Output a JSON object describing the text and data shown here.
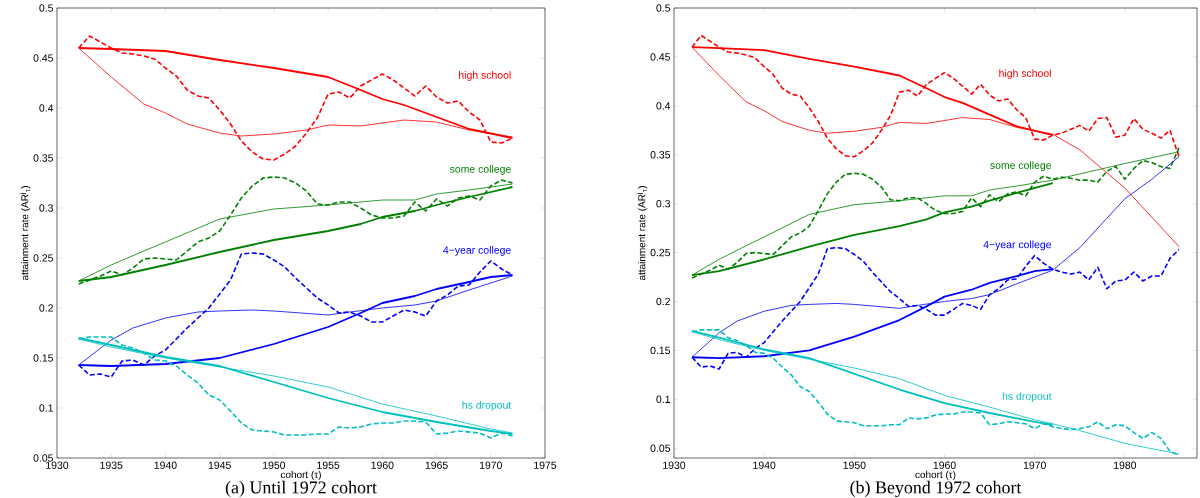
{
  "chart_data": [
    {
      "type": "line",
      "title": "(a) Until 1972 cohort",
      "xlabel": "cohort (τ)",
      "ylabel": "attainment rate (AR$^{j}$$_{τ}$)",
      "xlim": [
        1930,
        1975
      ],
      "xticks": [
        1930,
        1935,
        1940,
        1945,
        1950,
        1955,
        1960,
        1965,
        1970,
        1975
      ],
      "ylim": [
        0.05,
        0.5
      ],
      "yticks": [
        0.05,
        0.1,
        0.15,
        0.2,
        0.25,
        0.3,
        0.35,
        0.4,
        0.45,
        0.5
      ],
      "grid": false,
      "marker": "none",
      "series": [
        {
          "name": "high school",
          "color": "#ff0000",
          "line_style": "solid",
          "x": [
            1932,
            1935,
            1940,
            1945,
            1950,
            1955,
            1958,
            1960,
            1962,
            1965,
            1968,
            1972
          ],
          "values": [
            0.46,
            0.459,
            0.457,
            0.448,
            0.44,
            0.431,
            0.418,
            0.409,
            0.403,
            0.391,
            0.379,
            0.37
          ]
        },
        {
          "color": "#ff0000",
          "line_style": "solid",
          "x": [
            1932,
            1935,
            1938,
            1940,
            1942,
            1945,
            1947,
            1950,
            1953,
            1955,
            1958,
            1962,
            1965,
            1968,
            1972
          ],
          "values": [
            0.46,
            0.431,
            0.404,
            0.395,
            0.384,
            0.375,
            0.372,
            0.374,
            0.378,
            0.383,
            0.382,
            0.388,
            0.386,
            0.378,
            0.371
          ]
        },
        {
          "color": "#ff0000",
          "line_style": "dashed",
          "x": [
            1932,
            1933,
            1934,
            1935,
            1936,
            1937,
            1938,
            1939,
            1940,
            1941,
            1942,
            1943,
            1944,
            1945,
            1946,
            1947,
            1948,
            1949,
            1950,
            1951,
            1952,
            1953,
            1954,
            1955,
            1956,
            1957,
            1958,
            1959,
            1960,
            1961,
            1962,
            1963,
            1964,
            1965,
            1966,
            1967,
            1968,
            1969,
            1970,
            1971,
            1972
          ],
          "values": [
            0.46,
            0.472,
            0.466,
            0.46,
            0.455,
            0.454,
            0.452,
            0.449,
            0.44,
            0.432,
            0.418,
            0.412,
            0.41,
            0.398,
            0.384,
            0.367,
            0.356,
            0.349,
            0.348,
            0.354,
            0.362,
            0.375,
            0.39,
            0.414,
            0.416,
            0.41,
            0.422,
            0.428,
            0.434,
            0.428,
            0.42,
            0.412,
            0.422,
            0.411,
            0.405,
            0.407,
            0.396,
            0.388,
            0.366,
            0.365,
            0.37
          ]
        },
        {
          "name": "some college",
          "color": "#008000",
          "line_style": "solid",
          "x": [
            1932,
            1935,
            1940,
            1945,
            1950,
            1955,
            1958,
            1960,
            1963,
            1965,
            1968,
            1972
          ],
          "values": [
            0.227,
            0.231,
            0.243,
            0.256,
            0.268,
            0.277,
            0.284,
            0.291,
            0.297,
            0.303,
            0.311,
            0.321
          ]
        },
        {
          "color": "#008000",
          "line_style": "solid",
          "x": [
            1932,
            1935,
            1938,
            1940,
            1945,
            1950,
            1955,
            1960,
            1963,
            1965,
            1968,
            1972
          ],
          "values": [
            0.227,
            0.243,
            0.257,
            0.266,
            0.289,
            0.299,
            0.303,
            0.308,
            0.308,
            0.314,
            0.318,
            0.324
          ]
        },
        {
          "color": "#008000",
          "line_style": "dashed",
          "x": [
            1932,
            1933,
            1934,
            1935,
            1936,
            1937,
            1938,
            1939,
            1940,
            1941,
            1942,
            1943,
            1944,
            1945,
            1946,
            1947,
            1948,
            1949,
            1950,
            1951,
            1952,
            1953,
            1954,
            1955,
            1956,
            1957,
            1958,
            1959,
            1960,
            1961,
            1962,
            1963,
            1964,
            1965,
            1966,
            1967,
            1968,
            1969,
            1970,
            1971,
            1972
          ],
          "values": [
            0.224,
            0.228,
            0.232,
            0.237,
            0.233,
            0.24,
            0.249,
            0.25,
            0.249,
            0.248,
            0.257,
            0.266,
            0.27,
            0.277,
            0.293,
            0.31,
            0.322,
            0.33,
            0.331,
            0.33,
            0.325,
            0.317,
            0.304,
            0.303,
            0.306,
            0.306,
            0.3,
            0.293,
            0.29,
            0.29,
            0.292,
            0.306,
            0.297,
            0.309,
            0.302,
            0.31,
            0.312,
            0.308,
            0.322,
            0.328,
            0.325
          ]
        },
        {
          "name": "4−year college",
          "color": "#0000ff",
          "line_style": "solid",
          "x": [
            1932,
            1935,
            1940,
            1945,
            1950,
            1955,
            1958,
            1960,
            1963,
            1965,
            1968,
            1970,
            1972
          ],
          "values": [
            0.143,
            0.142,
            0.144,
            0.15,
            0.164,
            0.181,
            0.195,
            0.205,
            0.212,
            0.219,
            0.226,
            0.231,
            0.233
          ]
        },
        {
          "color": "#0000ff",
          "line_style": "solid",
          "x": [
            1932,
            1935,
            1937,
            1940,
            1943,
            1945,
            1948,
            1950,
            1955,
            1957,
            1960,
            1963,
            1965,
            1968,
            1972
          ],
          "values": [
            0.143,
            0.168,
            0.18,
            0.19,
            0.196,
            0.197,
            0.198,
            0.197,
            0.193,
            0.196,
            0.2,
            0.203,
            0.207,
            0.218,
            0.232
          ]
        },
        {
          "color": "#0000ff",
          "line_style": "dashed",
          "x": [
            1932,
            1933,
            1934,
            1935,
            1936,
            1937,
            1938,
            1939,
            1940,
            1941,
            1942,
            1943,
            1944,
            1945,
            1946,
            1947,
            1948,
            1949,
            1950,
            1951,
            1952,
            1953,
            1954,
            1955,
            1956,
            1957,
            1958,
            1959,
            1960,
            1961,
            1962,
            1963,
            1964,
            1965,
            1966,
            1967,
            1968,
            1969,
            1970,
            1971,
            1972
          ],
          "values": [
            0.143,
            0.133,
            0.134,
            0.131,
            0.147,
            0.148,
            0.143,
            0.152,
            0.158,
            0.169,
            0.18,
            0.19,
            0.2,
            0.214,
            0.228,
            0.254,
            0.255,
            0.254,
            0.248,
            0.241,
            0.23,
            0.22,
            0.21,
            0.203,
            0.195,
            0.196,
            0.192,
            0.186,
            0.186,
            0.192,
            0.198,
            0.196,
            0.192,
            0.207,
            0.213,
            0.222,
            0.223,
            0.236,
            0.247,
            0.239,
            0.233
          ]
        },
        {
          "name": "hs dropout",
          "color": "#00bfbf",
          "line_style": "solid",
          "x": [
            1932,
            1935,
            1940,
            1945,
            1950,
            1955,
            1960,
            1965,
            1970,
            1972
          ],
          "values": [
            0.17,
            0.163,
            0.151,
            0.142,
            0.126,
            0.11,
            0.096,
            0.086,
            0.077,
            0.074
          ]
        },
        {
          "color": "#00bfbf",
          "line_style": "solid",
          "x": [
            1932,
            1935,
            1940,
            1945,
            1950,
            1955,
            1960,
            1965,
            1970,
            1972
          ],
          "values": [
            0.169,
            0.161,
            0.15,
            0.141,
            0.132,
            0.121,
            0.104,
            0.092,
            0.079,
            0.075
          ]
        },
        {
          "color": "#00bfbf",
          "line_style": "dashed",
          "x": [
            1932,
            1933,
            1934,
            1935,
            1936,
            1937,
            1938,
            1939,
            1940,
            1941,
            1942,
            1943,
            1944,
            1945,
            1946,
            1947,
            1948,
            1949,
            1950,
            1951,
            1952,
            1953,
            1954,
            1955,
            1956,
            1957,
            1958,
            1959,
            1960,
            1961,
            1962,
            1963,
            1964,
            1965,
            1966,
            1967,
            1968,
            1969,
            1970,
            1971,
            1972
          ],
          "values": [
            0.169,
            0.171,
            0.171,
            0.171,
            0.163,
            0.16,
            0.155,
            0.148,
            0.147,
            0.142,
            0.133,
            0.125,
            0.113,
            0.108,
            0.097,
            0.085,
            0.078,
            0.077,
            0.076,
            0.073,
            0.073,
            0.073,
            0.074,
            0.074,
            0.081,
            0.08,
            0.081,
            0.084,
            0.085,
            0.085,
            0.087,
            0.087,
            0.086,
            0.074,
            0.075,
            0.077,
            0.076,
            0.075,
            0.07,
            0.075,
            0.072
          ]
        }
      ]
    },
    {
      "type": "line",
      "title": "(b) Beyond 1972 cohort",
      "xlabel": "cohort (τ)",
      "ylabel": "attainment rate (AR$^{j}$$_{τ}$)",
      "xlim": [
        1930,
        1988
      ],
      "xticks": [
        1930,
        1940,
        1950,
        1960,
        1970,
        1980
      ],
      "ylim": [
        0.04,
        0.5
      ],
      "yticks": [
        0.05,
        0.1,
        0.15,
        0.2,
        0.25,
        0.3,
        0.35,
        0.4,
        0.45,
        0.5
      ],
      "grid": false,
      "marker": "none",
      "series": [
        {
          "name": "high school",
          "color": "#ff0000",
          "line_style": "solid",
          "x": [
            1932,
            1935,
            1940,
            1945,
            1950,
            1955,
            1958,
            1960,
            1962,
            1965,
            1968,
            1972
          ],
          "values": [
            0.46,
            0.459,
            0.457,
            0.448,
            0.44,
            0.431,
            0.418,
            0.409,
            0.403,
            0.391,
            0.379,
            0.37
          ]
        },
        {
          "color": "#ff0000",
          "line_style": "solid",
          "x": [
            1932,
            1935,
            1938,
            1940,
            1942,
            1945,
            1947,
            1950,
            1953,
            1955,
            1958,
            1962,
            1965,
            1968,
            1972,
            1975,
            1980,
            1986
          ],
          "values": [
            0.46,
            0.431,
            0.404,
            0.395,
            0.384,
            0.375,
            0.372,
            0.374,
            0.378,
            0.383,
            0.382,
            0.388,
            0.386,
            0.378,
            0.371,
            0.355,
            0.316,
            0.256
          ]
        },
        {
          "color": "#ff0000",
          "line_style": "dashed",
          "x": [
            1932,
            1933,
            1934,
            1935,
            1936,
            1937,
            1938,
            1939,
            1940,
            1941,
            1942,
            1943,
            1944,
            1945,
            1946,
            1947,
            1948,
            1949,
            1950,
            1951,
            1952,
            1953,
            1954,
            1955,
            1956,
            1957,
            1958,
            1959,
            1960,
            1961,
            1962,
            1963,
            1964,
            1965,
            1966,
            1967,
            1968,
            1969,
            1970,
            1971,
            1972,
            1973,
            1974,
            1975,
            1976,
            1977,
            1978,
            1979,
            1980,
            1981,
            1982,
            1983,
            1984,
            1985,
            1986
          ],
          "values": [
            0.46,
            0.472,
            0.466,
            0.46,
            0.455,
            0.454,
            0.452,
            0.449,
            0.44,
            0.432,
            0.418,
            0.412,
            0.41,
            0.398,
            0.384,
            0.367,
            0.356,
            0.349,
            0.348,
            0.354,
            0.362,
            0.375,
            0.39,
            0.414,
            0.416,
            0.41,
            0.422,
            0.428,
            0.434,
            0.428,
            0.42,
            0.412,
            0.422,
            0.411,
            0.405,
            0.407,
            0.396,
            0.388,
            0.366,
            0.365,
            0.37,
            0.372,
            0.376,
            0.38,
            0.374,
            0.387,
            0.388,
            0.368,
            0.37,
            0.387,
            0.376,
            0.372,
            0.367,
            0.375,
            0.348
          ]
        },
        {
          "name": "some college",
          "color": "#008000",
          "line_style": "solid",
          "x": [
            1932,
            1935,
            1940,
            1945,
            1950,
            1955,
            1958,
            1960,
            1963,
            1965,
            1968,
            1972
          ],
          "values": [
            0.227,
            0.231,
            0.243,
            0.256,
            0.268,
            0.277,
            0.284,
            0.291,
            0.297,
            0.303,
            0.311,
            0.321
          ]
        },
        {
          "color": "#008000",
          "line_style": "solid",
          "x": [
            1932,
            1935,
            1938,
            1940,
            1945,
            1950,
            1955,
            1960,
            1963,
            1965,
            1968,
            1972,
            1980,
            1986
          ],
          "values": [
            0.227,
            0.243,
            0.257,
            0.266,
            0.289,
            0.299,
            0.303,
            0.308,
            0.308,
            0.314,
            0.318,
            0.324,
            0.341,
            0.353
          ]
        },
        {
          "color": "#008000",
          "line_style": "dashed",
          "x": [
            1932,
            1933,
            1934,
            1935,
            1936,
            1937,
            1938,
            1939,
            1940,
            1941,
            1942,
            1943,
            1944,
            1945,
            1946,
            1947,
            1948,
            1949,
            1950,
            1951,
            1952,
            1953,
            1954,
            1955,
            1956,
            1957,
            1958,
            1959,
            1960,
            1961,
            1962,
            1963,
            1964,
            1965,
            1966,
            1967,
            1968,
            1969,
            1970,
            1971,
            1972,
            1973,
            1974,
            1975,
            1976,
            1977,
            1978,
            1979,
            1980,
            1981,
            1982,
            1983,
            1984,
            1985,
            1986
          ],
          "values": [
            0.224,
            0.228,
            0.232,
            0.237,
            0.233,
            0.24,
            0.249,
            0.25,
            0.249,
            0.248,
            0.257,
            0.266,
            0.27,
            0.277,
            0.293,
            0.31,
            0.322,
            0.33,
            0.331,
            0.33,
            0.325,
            0.317,
            0.304,
            0.303,
            0.306,
            0.306,
            0.3,
            0.293,
            0.29,
            0.29,
            0.292,
            0.306,
            0.297,
            0.309,
            0.302,
            0.31,
            0.312,
            0.308,
            0.322,
            0.328,
            0.325,
            0.327,
            0.326,
            0.324,
            0.324,
            0.322,
            0.333,
            0.338,
            0.325,
            0.336,
            0.344,
            0.342,
            0.338,
            0.336,
            0.357
          ]
        },
        {
          "name": "4−year college",
          "color": "#0000ff",
          "line_style": "solid",
          "x": [
            1932,
            1935,
            1940,
            1945,
            1950,
            1955,
            1958,
            1960,
            1963,
            1965,
            1968,
            1970,
            1972
          ],
          "values": [
            0.143,
            0.142,
            0.144,
            0.15,
            0.164,
            0.181,
            0.195,
            0.205,
            0.212,
            0.219,
            0.226,
            0.231,
            0.233
          ]
        },
        {
          "color": "#0000ff",
          "line_style": "solid",
          "x": [
            1932,
            1935,
            1937,
            1940,
            1943,
            1945,
            1948,
            1950,
            1955,
            1957,
            1960,
            1963,
            1965,
            1968,
            1972,
            1975,
            1978,
            1980,
            1983,
            1986
          ],
          "values": [
            0.143,
            0.168,
            0.18,
            0.19,
            0.196,
            0.197,
            0.198,
            0.197,
            0.193,
            0.196,
            0.2,
            0.203,
            0.207,
            0.218,
            0.232,
            0.255,
            0.285,
            0.305,
            0.325,
            0.348
          ]
        },
        {
          "color": "#0000ff",
          "line_style": "dashed",
          "x": [
            1932,
            1933,
            1934,
            1935,
            1936,
            1937,
            1938,
            1939,
            1940,
            1941,
            1942,
            1943,
            1944,
            1945,
            1946,
            1947,
            1948,
            1949,
            1950,
            1951,
            1952,
            1953,
            1954,
            1955,
            1956,
            1957,
            1958,
            1959,
            1960,
            1961,
            1962,
            1963,
            1964,
            1965,
            1966,
            1967,
            1968,
            1969,
            1970,
            1971,
            1972,
            1973,
            1974,
            1975,
            1976,
            1977,
            1978,
            1979,
            1980,
            1981,
            1982,
            1983,
            1984,
            1985,
            1986
          ],
          "values": [
            0.143,
            0.133,
            0.134,
            0.131,
            0.147,
            0.148,
            0.143,
            0.152,
            0.158,
            0.169,
            0.18,
            0.19,
            0.2,
            0.214,
            0.228,
            0.254,
            0.255,
            0.254,
            0.248,
            0.241,
            0.23,
            0.22,
            0.21,
            0.203,
            0.195,
            0.196,
            0.192,
            0.186,
            0.186,
            0.192,
            0.198,
            0.196,
            0.192,
            0.207,
            0.213,
            0.222,
            0.223,
            0.236,
            0.247,
            0.239,
            0.233,
            0.23,
            0.228,
            0.23,
            0.222,
            0.235,
            0.213,
            0.221,
            0.222,
            0.23,
            0.221,
            0.226,
            0.226,
            0.244,
            0.253
          ]
        },
        {
          "name": "hs dropout",
          "color": "#00bfbf",
          "line_style": "solid",
          "x": [
            1932,
            1935,
            1940,
            1945,
            1950,
            1955,
            1960,
            1965,
            1970,
            1972
          ],
          "values": [
            0.17,
            0.163,
            0.151,
            0.142,
            0.126,
            0.11,
            0.096,
            0.086,
            0.077,
            0.074
          ]
        },
        {
          "color": "#00bfbf",
          "line_style": "solid",
          "x": [
            1932,
            1935,
            1940,
            1945,
            1950,
            1955,
            1960,
            1965,
            1970,
            1972,
            1975,
            1980,
            1986
          ],
          "values": [
            0.169,
            0.161,
            0.15,
            0.141,
            0.132,
            0.121,
            0.104,
            0.092,
            0.079,
            0.075,
            0.068,
            0.055,
            0.044
          ]
        },
        {
          "color": "#00bfbf",
          "line_style": "dashed",
          "x": [
            1932,
            1933,
            1934,
            1935,
            1936,
            1937,
            1938,
            1939,
            1940,
            1941,
            1942,
            1943,
            1944,
            1945,
            1946,
            1947,
            1948,
            1949,
            1950,
            1951,
            1952,
            1953,
            1954,
            1955,
            1956,
            1957,
            1958,
            1959,
            1960,
            1961,
            1962,
            1963,
            1964,
            1965,
            1966,
            1967,
            1968,
            1969,
            1970,
            1971,
            1972,
            1973,
            1974,
            1975,
            1976,
            1977,
            1978,
            1979,
            1980,
            1981,
            1982,
            1983,
            1984,
            1985,
            1986
          ],
          "values": [
            0.169,
            0.171,
            0.171,
            0.171,
            0.163,
            0.16,
            0.155,
            0.148,
            0.147,
            0.142,
            0.133,
            0.125,
            0.113,
            0.108,
            0.097,
            0.085,
            0.078,
            0.077,
            0.076,
            0.073,
            0.073,
            0.073,
            0.074,
            0.074,
            0.081,
            0.08,
            0.081,
            0.084,
            0.085,
            0.085,
            0.087,
            0.087,
            0.086,
            0.074,
            0.075,
            0.077,
            0.076,
            0.075,
            0.07,
            0.075,
            0.072,
            0.07,
            0.069,
            0.07,
            0.072,
            0.077,
            0.07,
            0.074,
            0.073,
            0.066,
            0.06,
            0.066,
            0.06,
            0.047,
            0.043
          ]
        }
      ]
    }
  ]
}
